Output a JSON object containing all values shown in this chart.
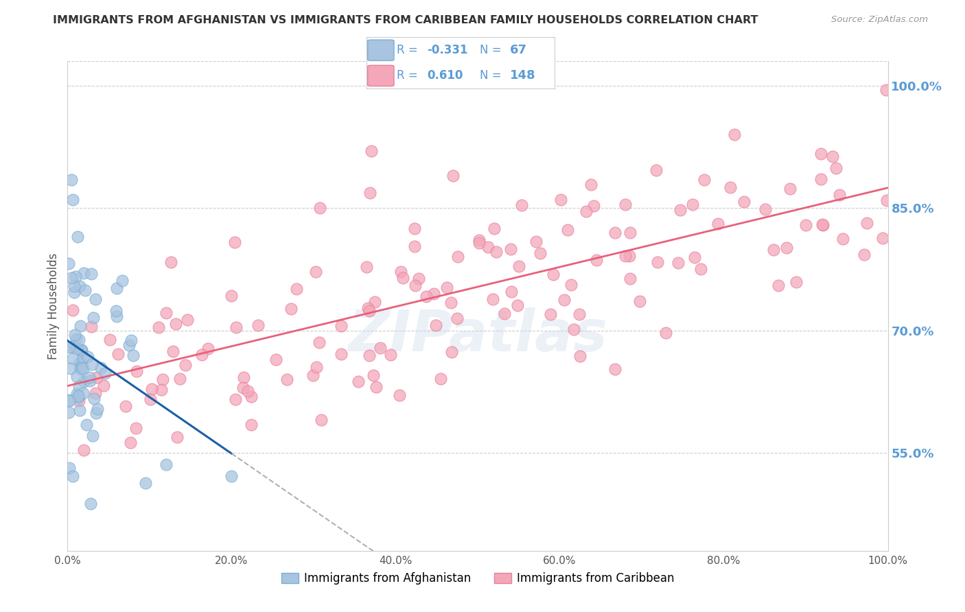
{
  "title": "IMMIGRANTS FROM AFGHANISTAN VS IMMIGRANTS FROM CARIBBEAN FAMILY HOUSEHOLDS CORRELATION CHART",
  "source": "Source: ZipAtlas.com",
  "ylabel": "Family Households",
  "legend_blue_label": "Immigrants from Afghanistan",
  "legend_pink_label": "Immigrants from Caribbean",
  "R_blue": -0.331,
  "N_blue": 67,
  "R_pink": 0.61,
  "N_pink": 148,
  "xlim": [
    0.0,
    100.0
  ],
  "ylim": [
    43.0,
    103.0
  ],
  "right_yticks": [
    55.0,
    70.0,
    85.0,
    100.0
  ],
  "xticks": [
    0.0,
    20.0,
    40.0,
    60.0,
    80.0,
    100.0
  ],
  "title_color": "#333333",
  "source_color": "#999999",
  "axis_label_color": "#555555",
  "right_tick_color": "#5b9bd5",
  "grid_color": "#cccccc",
  "blue_dot_color": "#a8c4e0",
  "blue_dot_edge": "#7aafd4",
  "pink_dot_color": "#f4a7b9",
  "pink_dot_edge": "#e87fa0",
  "blue_line_color": "#1a5fa8",
  "pink_line_color": "#e8607a",
  "watermark_color": "#c8d8e8",
  "watermark_alpha": 0.35,
  "legend_text_color": "#5b9bd5",
  "legend_border_color": "#cccccc",
  "legend_bg": "white"
}
